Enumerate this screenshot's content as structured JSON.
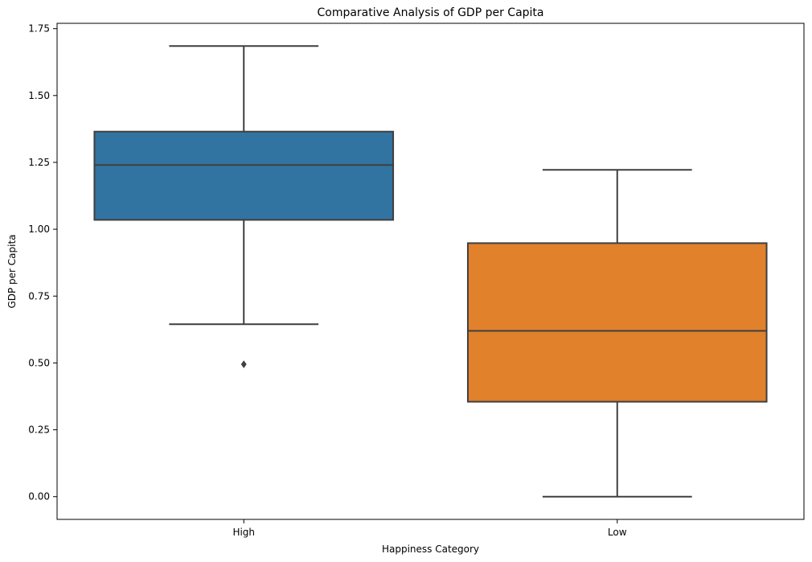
{
  "chart_data": {
    "type": "box",
    "title": "Comparative Analysis of GDP per Capita",
    "xlabel": "Happiness Category",
    "ylabel": "GDP per Capita",
    "categories": [
      "High",
      "Low"
    ],
    "ylim": [
      -0.085,
      1.77
    ],
    "yticks": [
      0.0,
      0.25,
      0.5,
      0.75,
      1.0,
      1.25,
      1.5,
      1.75
    ],
    "ytick_labels": [
      "0.00",
      "0.25",
      "0.50",
      "0.75",
      "1.00",
      "1.25",
      "1.50",
      "1.75"
    ],
    "grid": false,
    "boxes": [
      {
        "category": "High",
        "color": "#3274a1",
        "whisker_low": 0.645,
        "q1": 1.035,
        "median": 1.24,
        "q3": 1.365,
        "whisker_high": 1.685,
        "outliers": [
          0.495
        ]
      },
      {
        "category": "Low",
        "color": "#e1812c",
        "whisker_low": 0.0,
        "q1": 0.355,
        "median": 0.62,
        "q3": 0.948,
        "whisker_high": 1.222,
        "outliers": []
      }
    ]
  }
}
